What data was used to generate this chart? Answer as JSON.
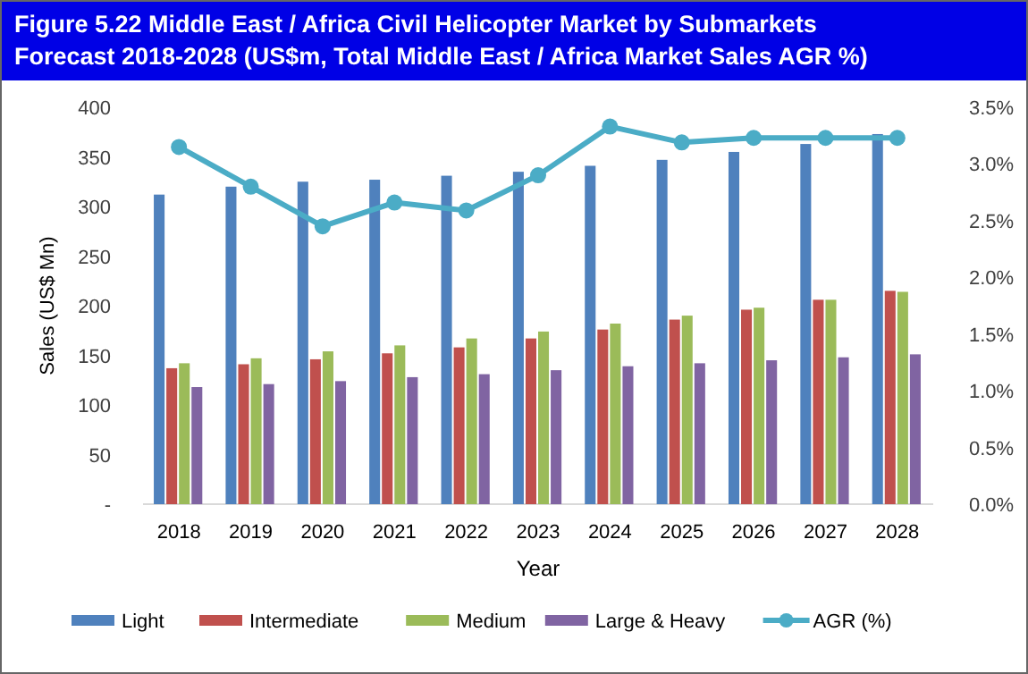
{
  "chart_data": {
    "type": "bar",
    "title": "Figure 5.22 Middle East / Africa Civil Helicopter Market by Submarkets Forecast 2018-2028 (US$m, Total Middle East / Africa Market Sales AGR %)",
    "xlabel": "Year",
    "ylabel": "Sales (US$ Mn)",
    "categories": [
      "2018",
      "2019",
      "2020",
      "2021",
      "2022",
      "2023",
      "2024",
      "2025",
      "2026",
      "2027",
      "2028"
    ],
    "series": [
      {
        "name": "Light",
        "color": "#4f81bd",
        "values": [
          312,
          320,
          325,
          327,
          331,
          335,
          341,
          347,
          355,
          363,
          373
        ]
      },
      {
        "name": "Intermediate",
        "color": "#c0504d",
        "values": [
          137,
          141,
          146,
          152,
          158,
          167,
          176,
          186,
          196,
          206,
          215
        ]
      },
      {
        "name": "Medium",
        "color": "#9bbb59",
        "values": [
          142,
          147,
          154,
          160,
          167,
          174,
          182,
          190,
          198,
          206,
          214
        ]
      },
      {
        "name": "Large & Heavy",
        "color": "#8064a2",
        "values": [
          118,
          121,
          124,
          128,
          131,
          135,
          139,
          142,
          145,
          148,
          151
        ]
      },
      {
        "name": "AGR (%)",
        "type": "line",
        "axis": "y2",
        "color": "#4bacc6",
        "marker": "circle",
        "values": [
          3.15,
          2.8,
          2.45,
          2.66,
          2.59,
          2.9,
          3.33,
          3.19,
          3.23,
          3.23,
          3.23
        ]
      }
    ],
    "ylim": [
      0,
      400
    ],
    "yticks": [
      {
        "value": 0,
        "label": "-"
      },
      50,
      100,
      150,
      200,
      250,
      300,
      350,
      400
    ],
    "y2lim": [
      0,
      3.5
    ],
    "y2ticks": [
      {
        "value": 0,
        "label": "0.0%"
      },
      {
        "value": 0.5,
        "label": "0.5%"
      },
      {
        "value": 1,
        "label": "1.0%"
      },
      {
        "value": 1.5,
        "label": "1.5%"
      },
      {
        "value": 2,
        "label": "2.0%"
      },
      {
        "value": 2.5,
        "label": "2.5%"
      },
      {
        "value": 3,
        "label": "3.0%"
      },
      {
        "value": 3.5,
        "label": "3.5%"
      }
    ],
    "legend": "bottom"
  }
}
